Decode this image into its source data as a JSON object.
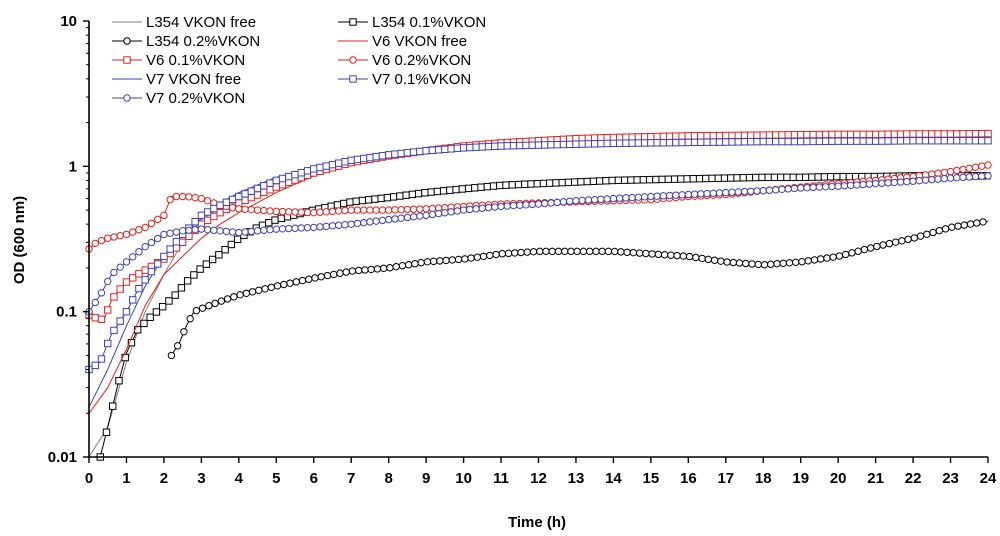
{
  "chart_data": {
    "type": "line",
    "title": "",
    "xlabel": "Time (h)",
    "ylabel": "OD (600 nm)",
    "xlim": [
      0,
      24
    ],
    "ylim": [
      0.01,
      10
    ],
    "y_scale": "log",
    "x_ticks": [
      0,
      1,
      2,
      3,
      4,
      5,
      6,
      7,
      8,
      9,
      10,
      11,
      12,
      13,
      14,
      15,
      16,
      17,
      18,
      19,
      20,
      21,
      22,
      23,
      24
    ],
    "y_ticks": [
      0.01,
      0.1,
      1,
      10
    ],
    "y_tick_labels": [
      "0.01",
      "0.1",
      "1",
      "10"
    ],
    "grid": false,
    "legend_position": "top-left",
    "series": [
      {
        "name": "L354 VKON free",
        "color": "#808080",
        "marker": "none",
        "points": [
          [
            0,
            0.01
          ],
          [
            0.5,
            0.016
          ],
          [
            1,
            0.045
          ],
          [
            1.5,
            0.1
          ],
          [
            2,
            0.18
          ],
          [
            2.5,
            0.3
          ],
          [
            3,
            0.43
          ],
          [
            3.5,
            0.52
          ],
          [
            4,
            0.6
          ],
          [
            5,
            0.78
          ],
          [
            6,
            0.96
          ],
          [
            7,
            1.1
          ],
          [
            8,
            1.22
          ],
          [
            9,
            1.3
          ],
          [
            10,
            1.38
          ],
          [
            12,
            1.45
          ],
          [
            14,
            1.48
          ],
          [
            16,
            1.5
          ],
          [
            18,
            1.52
          ],
          [
            20,
            1.52
          ],
          [
            22,
            1.52
          ],
          [
            24,
            1.52
          ]
        ]
      },
      {
        "name": "L354 0.1%VKON",
        "color": "#000000",
        "marker": "square",
        "points": [
          [
            0.3,
            0.01
          ],
          [
            0.5,
            0.016
          ],
          [
            0.75,
            0.03
          ],
          [
            1,
            0.052
          ],
          [
            1.3,
            0.075
          ],
          [
            1.6,
            0.09
          ],
          [
            2,
            0.11
          ],
          [
            2.3,
            0.13
          ],
          [
            2.6,
            0.16
          ],
          [
            3,
            0.2
          ],
          [
            3.5,
            0.25
          ],
          [
            4,
            0.32
          ],
          [
            4.5,
            0.38
          ],
          [
            5,
            0.43
          ],
          [
            6,
            0.5
          ],
          [
            7,
            0.57
          ],
          [
            8,
            0.61
          ],
          [
            9,
            0.66
          ],
          [
            10,
            0.7
          ],
          [
            11,
            0.74
          ],
          [
            12,
            0.76
          ],
          [
            13,
            0.78
          ],
          [
            14,
            0.8
          ],
          [
            15,
            0.81
          ],
          [
            16,
            0.82
          ],
          [
            17,
            0.83
          ],
          [
            18,
            0.84
          ],
          [
            19,
            0.84
          ],
          [
            20,
            0.85
          ],
          [
            21,
            0.85
          ],
          [
            22,
            0.86
          ],
          [
            23,
            0.86
          ],
          [
            24,
            0.86
          ]
        ]
      },
      {
        "name": "L354 0.2%VKON",
        "color": "#000000",
        "marker": "circle",
        "points": [
          [
            2.2,
            0.05
          ],
          [
            2.4,
            0.06
          ],
          [
            2.6,
            0.08
          ],
          [
            2.8,
            0.1
          ],
          [
            3.2,
            0.11
          ],
          [
            3.6,
            0.12
          ],
          [
            4,
            0.13
          ],
          [
            5,
            0.15
          ],
          [
            6,
            0.17
          ],
          [
            7,
            0.19
          ],
          [
            8,
            0.2
          ],
          [
            9,
            0.22
          ],
          [
            10,
            0.23
          ],
          [
            11,
            0.25
          ],
          [
            12,
            0.26
          ],
          [
            13,
            0.26
          ],
          [
            14,
            0.26
          ],
          [
            15,
            0.25
          ],
          [
            16,
            0.24
          ],
          [
            17,
            0.22
          ],
          [
            18,
            0.21
          ],
          [
            19,
            0.22
          ],
          [
            20,
            0.24
          ],
          [
            21,
            0.28
          ],
          [
            22,
            0.32
          ],
          [
            23,
            0.38
          ],
          [
            24,
            0.42
          ]
        ]
      },
      {
        "name": "V6 VKON free",
        "color": "#e02020",
        "marker": "none",
        "points": [
          [
            0,
            0.02
          ],
          [
            0.5,
            0.03
          ],
          [
            1,
            0.055
          ],
          [
            1.5,
            0.11
          ],
          [
            2,
            0.18
          ],
          [
            2.5,
            0.24
          ],
          [
            3,
            0.32
          ],
          [
            3.5,
            0.4
          ],
          [
            4,
            0.48
          ],
          [
            5,
            0.66
          ],
          [
            6,
            0.86
          ],
          [
            7,
            1.02
          ],
          [
            8,
            1.14
          ],
          [
            9,
            1.24
          ],
          [
            10,
            1.32
          ],
          [
            12,
            1.42
          ],
          [
            14,
            1.48
          ],
          [
            16,
            1.52
          ],
          [
            18,
            1.55
          ],
          [
            20,
            1.56
          ],
          [
            22,
            1.57
          ],
          [
            24,
            1.58
          ]
        ]
      },
      {
        "name": "V6 0.1%VKON",
        "color": "#e02020",
        "marker": "square",
        "points": [
          [
            0,
            0.095
          ],
          [
            0.2,
            0.09
          ],
          [
            0.4,
            0.088
          ],
          [
            0.6,
            0.12
          ],
          [
            0.8,
            0.14
          ],
          [
            1,
            0.16
          ],
          [
            1.3,
            0.18
          ],
          [
            1.6,
            0.2
          ],
          [
            2,
            0.23
          ],
          [
            2.5,
            0.3
          ],
          [
            3,
            0.4
          ],
          [
            3.5,
            0.48
          ],
          [
            4,
            0.56
          ],
          [
            5,
            0.72
          ],
          [
            6,
            0.9
          ],
          [
            7,
            1.06
          ],
          [
            8,
            1.18
          ],
          [
            9,
            1.28
          ],
          [
            10,
            1.38
          ],
          [
            11,
            1.45
          ],
          [
            12,
            1.5
          ],
          [
            13,
            1.55
          ],
          [
            14,
            1.58
          ],
          [
            15,
            1.6
          ],
          [
            16,
            1.62
          ],
          [
            17,
            1.63
          ],
          [
            18,
            1.64
          ],
          [
            19,
            1.65
          ],
          [
            20,
            1.66
          ],
          [
            21,
            1.66
          ],
          [
            22,
            1.67
          ],
          [
            23,
            1.67
          ],
          [
            24,
            1.68
          ]
        ]
      },
      {
        "name": "V6 0.2%VKON",
        "color": "#e02020",
        "marker": "circle",
        "points": [
          [
            0,
            0.27
          ],
          [
            0.2,
            0.3
          ],
          [
            0.5,
            0.32
          ],
          [
            1,
            0.34
          ],
          [
            1.5,
            0.38
          ],
          [
            2,
            0.46
          ],
          [
            2.2,
            0.62
          ],
          [
            2.6,
            0.62
          ],
          [
            3,
            0.6
          ],
          [
            3.5,
            0.54
          ],
          [
            4,
            0.51
          ],
          [
            5,
            0.49
          ],
          [
            6,
            0.48
          ],
          [
            7,
            0.5
          ],
          [
            8,
            0.5
          ],
          [
            9,
            0.51
          ],
          [
            10,
            0.53
          ],
          [
            11,
            0.55
          ],
          [
            12,
            0.56
          ],
          [
            13,
            0.57
          ],
          [
            14,
            0.58
          ],
          [
            15,
            0.59
          ],
          [
            16,
            0.62
          ],
          [
            17,
            0.64
          ],
          [
            18,
            0.68
          ],
          [
            19,
            0.72
          ],
          [
            20,
            0.76
          ],
          [
            21,
            0.8
          ],
          [
            22,
            0.85
          ],
          [
            23,
            0.92
          ],
          [
            24,
            1.02
          ]
        ]
      },
      {
        "name": "V7 VKON free",
        "color": "#4040b0",
        "marker": "none",
        "points": [
          [
            0,
            0.022
          ],
          [
            0.5,
            0.04
          ],
          [
            1,
            0.08
          ],
          [
            1.5,
            0.15
          ],
          [
            2,
            0.24
          ],
          [
            2.5,
            0.34
          ],
          [
            3,
            0.44
          ],
          [
            3.5,
            0.56
          ],
          [
            4,
            0.66
          ],
          [
            5,
            0.84
          ],
          [
            6,
            0.98
          ],
          [
            7,
            1.1
          ],
          [
            8,
            1.2
          ],
          [
            9,
            1.28
          ],
          [
            10,
            1.34
          ],
          [
            12,
            1.4
          ],
          [
            14,
            1.44
          ],
          [
            16,
            1.46
          ],
          [
            18,
            1.48
          ],
          [
            20,
            1.49
          ],
          [
            22,
            1.5
          ],
          [
            24,
            1.5
          ]
        ]
      },
      {
        "name": "V7 0.1%VKON",
        "color": "#4040b0",
        "marker": "square",
        "points": [
          [
            0,
            0.04
          ],
          [
            0.3,
            0.045
          ],
          [
            0.6,
            0.07
          ],
          [
            1,
            0.1
          ],
          [
            1.3,
            0.14
          ],
          [
            1.6,
            0.18
          ],
          [
            2,
            0.24
          ],
          [
            2.5,
            0.34
          ],
          [
            3,
            0.46
          ],
          [
            3.5,
            0.54
          ],
          [
            4,
            0.62
          ],
          [
            5,
            0.8
          ],
          [
            6,
            0.96
          ],
          [
            7,
            1.1
          ],
          [
            8,
            1.2
          ],
          [
            9,
            1.28
          ],
          [
            10,
            1.34
          ],
          [
            11,
            1.38
          ],
          [
            12,
            1.4
          ],
          [
            13,
            1.42
          ],
          [
            14,
            1.44
          ],
          [
            15,
            1.45
          ],
          [
            16,
            1.46
          ],
          [
            17,
            1.47
          ],
          [
            18,
            1.48
          ],
          [
            19,
            1.48
          ],
          [
            20,
            1.49
          ],
          [
            21,
            1.49
          ],
          [
            22,
            1.5
          ],
          [
            23,
            1.5
          ],
          [
            24,
            1.5
          ]
        ]
      },
      {
        "name": "V7 0.2%VKON",
        "color": "#4040b0",
        "marker": "circle",
        "points": [
          [
            0,
            0.1
          ],
          [
            0.3,
            0.13
          ],
          [
            0.6,
            0.18
          ],
          [
            1,
            0.22
          ],
          [
            1.5,
            0.28
          ],
          [
            2,
            0.34
          ],
          [
            2.5,
            0.36
          ],
          [
            3,
            0.37
          ],
          [
            3.5,
            0.36
          ],
          [
            4,
            0.35
          ],
          [
            5,
            0.37
          ],
          [
            6,
            0.38
          ],
          [
            7,
            0.4
          ],
          [
            8,
            0.43
          ],
          [
            9,
            0.46
          ],
          [
            10,
            0.5
          ],
          [
            11,
            0.53
          ],
          [
            12,
            0.55
          ],
          [
            13,
            0.58
          ],
          [
            14,
            0.6
          ],
          [
            15,
            0.62
          ],
          [
            16,
            0.64
          ],
          [
            17,
            0.66
          ],
          [
            18,
            0.68
          ],
          [
            19,
            0.71
          ],
          [
            20,
            0.73
          ],
          [
            21,
            0.76
          ],
          [
            22,
            0.79
          ],
          [
            23,
            0.83
          ],
          [
            24,
            0.86
          ]
        ]
      }
    ]
  }
}
